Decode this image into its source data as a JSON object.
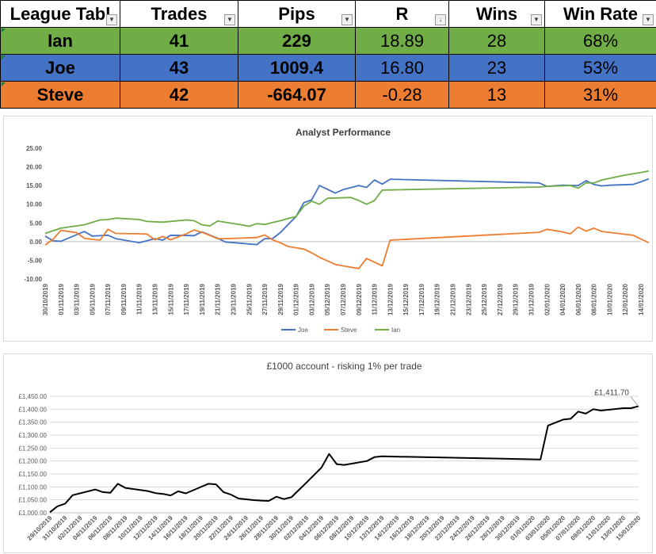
{
  "table": {
    "headers": [
      "League Tabl",
      "Trades",
      "Pips",
      "R",
      "Wins",
      "Win Rate"
    ],
    "rows": [
      {
        "name": "Ian",
        "trades": "41",
        "pips": "229",
        "r": "18.89",
        "wins": "28",
        "win_rate": "68%",
        "color": "#70ad47"
      },
      {
        "name": "Joe",
        "trades": "43",
        "pips": "1009.4",
        "r": "16.80",
        "wins": "23",
        "win_rate": "53%",
        "color": "#4472c4"
      },
      {
        "name": "Steve",
        "trades": "42",
        "pips": "-664.07",
        "r": "-0.28",
        "wins": "13",
        "win_rate": "31%",
        "color": "#ed7d31"
      }
    ]
  },
  "chart_data": [
    {
      "type": "line",
      "title": "Analyst Performance",
      "ylim": [
        -10,
        25
      ],
      "yticks": [
        "-10.00",
        "-5.00",
        "0.00",
        "5.00",
        "10.00",
        "15.00",
        "20.00",
        "25.00"
      ],
      "x_dates": [
        "30/10/2019",
        "01/11/2019",
        "03/11/2019",
        "05/11/2019",
        "07/11/2019",
        "09/11/2019",
        "11/11/2019",
        "13/11/2019",
        "15/11/2019",
        "17/11/2019",
        "19/11/2019",
        "21/11/2019",
        "23/11/2019",
        "25/11/2019",
        "27/11/2019",
        "29/11/2019",
        "01/12/2019",
        "03/12/2019",
        "05/12/2019",
        "07/12/2019",
        "09/12/2019",
        "11/12/2019",
        "13/12/2019",
        "15/12/2019",
        "17/12/2019",
        "19/12/2019",
        "21/12/2019",
        "23/12/2019",
        "25/12/2019",
        "27/12/2019",
        "29/12/2019",
        "31/12/2019",
        "02/01/2020",
        "04/01/2020",
        "06/01/2020",
        "08/01/2020",
        "10/01/2020",
        "12/01/2020",
        "14/01/2020"
      ],
      "legend_position": "bottom",
      "series": [
        {
          "name": "Joe",
          "color": "#4472c4",
          "points": [
            [
              "30/10/2019",
              1.5
            ],
            [
              "31/10/2019",
              0.2
            ],
            [
              "01/11/2019",
              0.1
            ],
            [
              "04/11/2019",
              2.7
            ],
            [
              "05/11/2019",
              1.5
            ],
            [
              "07/11/2019",
              1.7
            ],
            [
              "08/11/2019",
              0.8
            ],
            [
              "11/11/2019",
              -0.3
            ],
            [
              "13/11/2019",
              0.8
            ],
            [
              "14/11/2019",
              0.4
            ],
            [
              "15/11/2019",
              1.7
            ],
            [
              "18/11/2019",
              1.6
            ],
            [
              "19/11/2019",
              2.6
            ],
            [
              "21/11/2019",
              0.9
            ],
            [
              "22/11/2019",
              -0.1
            ],
            [
              "26/11/2019",
              -0.8
            ],
            [
              "27/11/2019",
              0.8
            ],
            [
              "28/11/2019",
              0.8
            ],
            [
              "29/11/2019",
              2.4
            ],
            [
              "30/11/2019",
              4.6
            ],
            [
              "01/12/2019",
              6.7
            ],
            [
              "02/12/2019",
              10.4
            ],
            [
              "03/12/2019",
              11.2
            ],
            [
              "04/12/2019",
              15.0
            ],
            [
              "06/12/2019",
              13.0
            ],
            [
              "07/12/2019",
              13.9
            ],
            [
              "09/12/2019",
              15.0
            ],
            [
              "10/12/2019",
              14.5
            ],
            [
              "11/12/2019",
              16.5
            ],
            [
              "12/12/2019",
              15.4
            ],
            [
              "13/12/2019",
              16.7
            ],
            [
              "01/01/2020",
              15.7
            ],
            [
              "02/01/2020",
              14.8
            ],
            [
              "04/01/2020",
              15.1
            ],
            [
              "06/01/2020",
              15.0
            ],
            [
              "07/01/2020",
              16.3
            ],
            [
              "08/01/2020",
              15.3
            ],
            [
              "09/01/2020",
              14.9
            ],
            [
              "10/01/2020",
              15.1
            ],
            [
              "13/01/2020",
              15.3
            ],
            [
              "14/01/2020",
              16.0
            ],
            [
              "15/01/2020",
              16.8
            ]
          ]
        },
        {
          "name": "Steve",
          "color": "#ed7d31",
          "points": [
            [
              "30/10/2019",
              -0.9
            ],
            [
              "31/10/2019",
              0.6
            ],
            [
              "01/11/2019",
              3.0
            ],
            [
              "03/11/2019",
              2.4
            ],
            [
              "04/11/2019",
              0.9
            ],
            [
              "05/11/2019",
              0.6
            ],
            [
              "06/11/2019",
              0.4
            ],
            [
              "07/11/2019",
              3.3
            ],
            [
              "08/11/2019",
              2.2
            ],
            [
              "11/11/2019",
              2.1
            ],
            [
              "12/11/2019",
              2.0
            ],
            [
              "13/11/2019",
              0.5
            ],
            [
              "14/11/2019",
              1.4
            ],
            [
              "15/11/2019",
              0.5
            ],
            [
              "17/11/2019",
              2.1
            ],
            [
              "18/11/2019",
              3.1
            ],
            [
              "19/11/2019",
              2.5
            ],
            [
              "21/11/2019",
              0.8
            ],
            [
              "22/11/2019",
              0.8
            ],
            [
              "26/11/2019",
              1.1
            ],
            [
              "27/11/2019",
              1.8
            ],
            [
              "28/11/2019",
              0.5
            ],
            [
              "29/11/2019",
              -0.3
            ],
            [
              "30/11/2019",
              -1.3
            ],
            [
              "02/12/2019",
              -2.0
            ],
            [
              "03/12/2019",
              -3.0
            ],
            [
              "04/12/2019",
              -4.2
            ],
            [
              "06/12/2019",
              -6.1
            ],
            [
              "07/12/2019",
              -6.5
            ],
            [
              "09/12/2019",
              -7.2
            ],
            [
              "10/12/2019",
              -4.5
            ],
            [
              "12/12/2019",
              -6.5
            ],
            [
              "13/12/2019",
              0.4
            ],
            [
              "01/01/2020",
              2.5
            ],
            [
              "02/01/2020",
              3.3
            ],
            [
              "04/01/2020",
              2.6
            ],
            [
              "05/01/2020",
              2.1
            ],
            [
              "06/01/2020",
              3.9
            ],
            [
              "07/01/2020",
              2.8
            ],
            [
              "08/01/2020",
              3.6
            ],
            [
              "09/01/2020",
              2.7
            ],
            [
              "13/01/2020",
              1.7
            ],
            [
              "15/01/2020",
              -0.3
            ]
          ]
        },
        {
          "name": "Ian",
          "color": "#70ad47",
          "points": [
            [
              "30/10/2019",
              2.2
            ],
            [
              "01/11/2019",
              3.6
            ],
            [
              "04/11/2019",
              4.5
            ],
            [
              "06/11/2019",
              5.8
            ],
            [
              "07/11/2019",
              5.9
            ],
            [
              "08/11/2019",
              6.3
            ],
            [
              "11/11/2019",
              5.9
            ],
            [
              "12/11/2019",
              5.4
            ],
            [
              "14/11/2019",
              5.2
            ],
            [
              "17/11/2019",
              5.8
            ],
            [
              "18/11/2019",
              5.6
            ],
            [
              "19/11/2019",
              4.5
            ],
            [
              "20/11/2019",
              4.2
            ],
            [
              "21/11/2019",
              5.5
            ],
            [
              "24/11/2019",
              4.5
            ],
            [
              "25/11/2019",
              4.1
            ],
            [
              "26/11/2019",
              4.8
            ],
            [
              "27/11/2019",
              4.6
            ],
            [
              "28/11/2019",
              5.1
            ],
            [
              "29/11/2019",
              5.6
            ],
            [
              "30/11/2019",
              6.2
            ],
            [
              "01/12/2019",
              6.7
            ],
            [
              "02/12/2019",
              9.5
            ],
            [
              "03/12/2019",
              10.8
            ],
            [
              "04/12/2019",
              10.0
            ],
            [
              "05/12/2019",
              11.6
            ],
            [
              "08/12/2019",
              11.8
            ],
            [
              "09/12/2019",
              11.0
            ],
            [
              "10/12/2019",
              10.0
            ],
            [
              "11/12/2019",
              11.0
            ],
            [
              "12/12/2019",
              13.8
            ],
            [
              "01/01/2020",
              14.6
            ],
            [
              "02/01/2020",
              14.8
            ],
            [
              "05/01/2020",
              15.0
            ],
            [
              "06/01/2020",
              14.3
            ],
            [
              "07/01/2020",
              15.7
            ],
            [
              "08/01/2020",
              15.7
            ],
            [
              "09/01/2020",
              16.5
            ],
            [
              "12/01/2020",
              17.8
            ],
            [
              "14/01/2020",
              18.5
            ],
            [
              "15/01/2020",
              18.9
            ]
          ]
        }
      ]
    },
    {
      "type": "line",
      "title": "£1000 account - risking 1% per trade",
      "ylim": [
        1000,
        1450
      ],
      "yticks": [
        "£1,000.00",
        "£1,050.00",
        "£1,100.00",
        "£1,150.00",
        "£1,200.00",
        "£1,250.00",
        "£1,300.00",
        "£1,350.00",
        "£1,400.00",
        "£1,450.00"
      ],
      "x_dates": [
        "29/10/2019",
        "31/10/2019",
        "02/11/2019",
        "04/11/2019",
        "06/11/2019",
        "08/11/2019",
        "10/11/2019",
        "12/11/2019",
        "14/11/2019",
        "16/11/2019",
        "18/11/2019",
        "20/11/2019",
        "22/11/2019",
        "24/11/2019",
        "26/11/2019",
        "28/11/2019",
        "30/11/2019",
        "02/12/2019",
        "04/12/2019",
        "06/12/2019",
        "08/12/2019",
        "10/12/2019",
        "12/12/2019",
        "14/12/2019",
        "16/12/2019",
        "18/12/2019",
        "20/12/2019",
        "22/12/2019",
        "24/12/2019",
        "26/12/2019",
        "28/12/2019",
        "30/12/2019",
        "01/01/2020",
        "03/01/2020",
        "05/01/2020",
        "07/01/2020",
        "09/01/2020",
        "11/01/2020",
        "13/01/2020",
        "15/01/2020"
      ],
      "annotation": "£1,411.70",
      "series": [
        {
          "name": "",
          "color": "#000000",
          "points": [
            [
              "29/10/2019",
              1002
            ],
            [
              "30/10/2019",
              1025
            ],
            [
              "31/10/2019",
              1035
            ],
            [
              "01/11/2019",
              1068
            ],
            [
              "04/11/2019",
              1090
            ],
            [
              "05/11/2019",
              1080
            ],
            [
              "06/11/2019",
              1077
            ],
            [
              "07/11/2019",
              1112
            ],
            [
              "08/11/2019",
              1096
            ],
            [
              "11/11/2019",
              1084
            ],
            [
              "12/11/2019",
              1076
            ],
            [
              "13/11/2019",
              1073
            ],
            [
              "14/11/2019",
              1067
            ],
            [
              "15/11/2019",
              1083
            ],
            [
              "16/11/2019",
              1075
            ],
            [
              "19/11/2019",
              1112
            ],
            [
              "20/11/2019",
              1110
            ],
            [
              "21/11/2019",
              1080
            ],
            [
              "22/11/2019",
              1070
            ],
            [
              "23/11/2019",
              1055
            ],
            [
              "25/11/2019",
              1049
            ],
            [
              "26/11/2019",
              1047
            ],
            [
              "27/11/2019",
              1046
            ],
            [
              "28/11/2019",
              1062
            ],
            [
              "29/11/2019",
              1053
            ],
            [
              "30/11/2019",
              1060
            ],
            [
              "02/12/2019",
              1117
            ],
            [
              "04/12/2019",
              1175
            ],
            [
              "05/12/2019",
              1227
            ],
            [
              "06/12/2019",
              1188
            ],
            [
              "07/12/2019",
              1185
            ],
            [
              "10/12/2019",
              1200
            ],
            [
              "11/12/2019",
              1215
            ],
            [
              "12/12/2019",
              1218
            ],
            [
              "02/01/2020",
              1206
            ],
            [
              "03/01/2020",
              1337
            ],
            [
              "05/01/2020",
              1360
            ],
            [
              "06/01/2020",
              1363
            ],
            [
              "07/01/2020",
              1391
            ],
            [
              "08/01/2020",
              1383
            ],
            [
              "09/01/2020",
              1400
            ],
            [
              "10/01/2020",
              1395
            ],
            [
              "13/01/2020",
              1404
            ],
            [
              "14/01/2020",
              1404
            ],
            [
              "15/01/2020",
              1411.7
            ]
          ]
        }
      ]
    }
  ]
}
